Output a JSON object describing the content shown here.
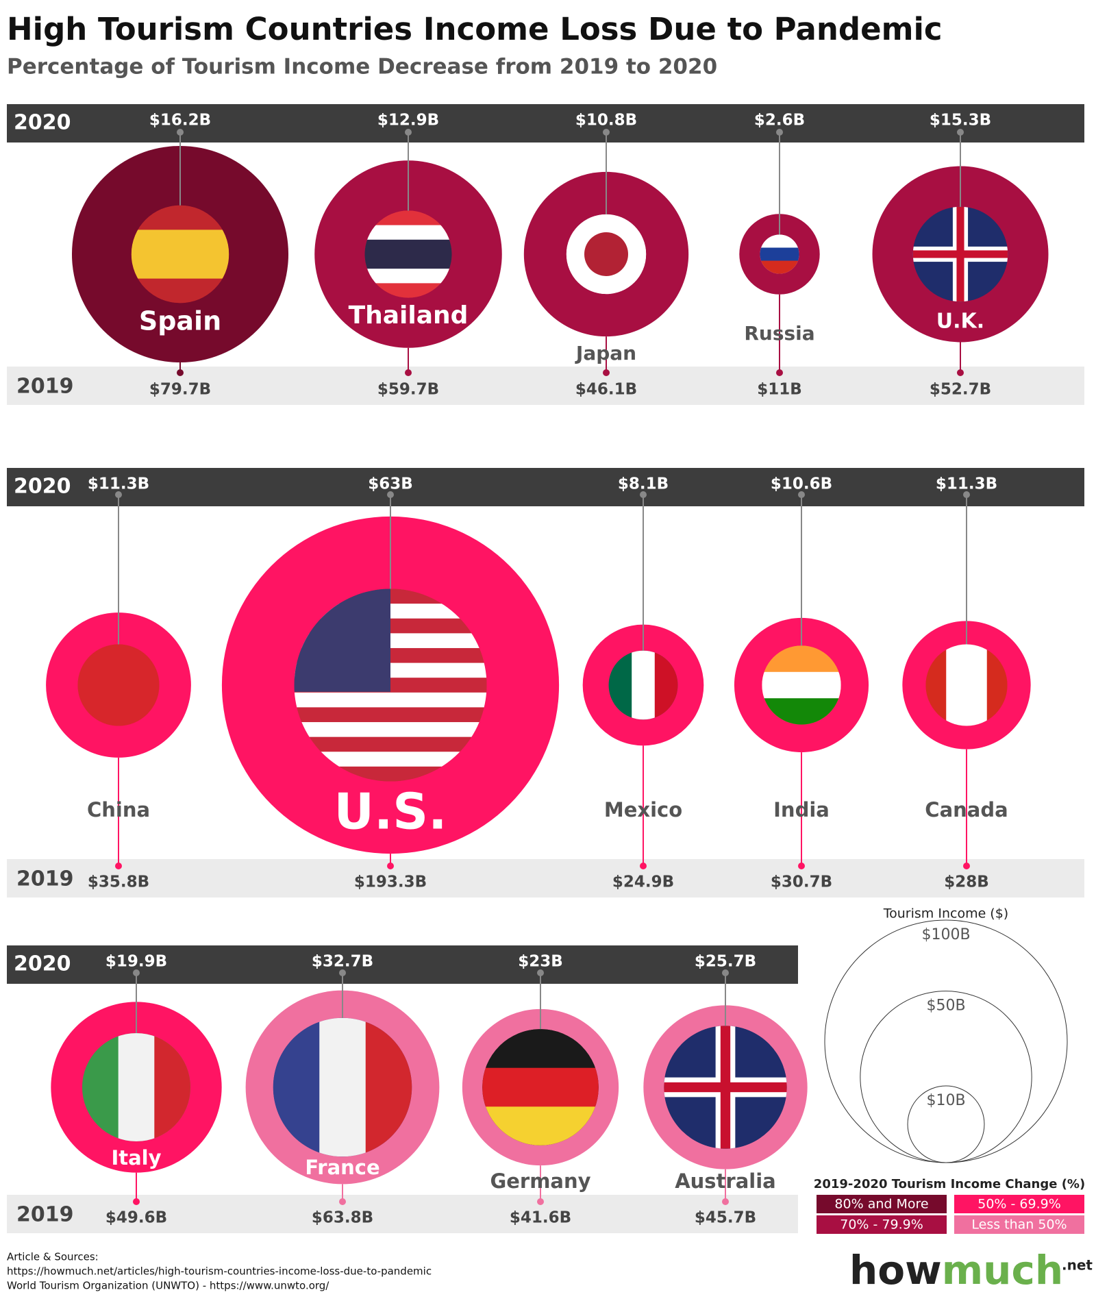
{
  "chart_data": {
    "type": "nested-bubble",
    "title": "High Tourism Countries Income Loss Due to Pandemic",
    "subtitle": "Percentage of Tourism Income Decrease from 2019 to 2020",
    "rows": [
      {
        "categories": [
          "Spain",
          "Thailand",
          "Japan",
          "Russia",
          "U.K."
        ],
        "colors": [
          "#760a2c",
          "#a80f42",
          "#a80f42",
          "#a80f42",
          "#a80f42"
        ],
        "series": [
          {
            "name": "2020",
            "values": [
              16.2,
              12.9,
              10.8,
              2.6,
              15.3
            ],
            "value_labels": [
              "$16.2B",
              "$12.9B",
              "$10.8B",
              "$2.6B",
              "$15.3B"
            ]
          },
          {
            "name": "2019",
            "values": [
              79.7,
              59.7,
              46.1,
              11,
              52.7
            ],
            "value_labels": [
              "$79.7B",
              "$59.7B",
              "$46.1B",
              "$11B",
              "$52.7B"
            ]
          }
        ]
      },
      {
        "categories": [
          "China",
          "U.S.",
          "Mexico",
          "India",
          "Canada"
        ],
        "colors": [
          "#ff1463",
          "#ff1463",
          "#ff1463",
          "#ff1463",
          "#ff1463"
        ],
        "series": [
          {
            "name": "2020",
            "values": [
              11.3,
              63,
              8.1,
              10.6,
              11.3
            ],
            "value_labels": [
              "$11.3B",
              "$63B",
              "$8.1B",
              "$10.6B",
              "$11.3B"
            ]
          },
          {
            "name": "2019",
            "values": [
              35.8,
              193.3,
              24.9,
              30.7,
              28
            ],
            "value_labels": [
              "$35.8B",
              "$193.3B",
              "$24.9B",
              "$30.7B",
              "$28B"
            ]
          }
        ]
      },
      {
        "categories": [
          "Italy",
          "France",
          "Germany",
          "Australia"
        ],
        "colors": [
          "#ff1463",
          "#f0709f",
          "#f0709f",
          "#f0709f"
        ],
        "series": [
          {
            "name": "2020",
            "values": [
              19.9,
              32.7,
              23,
              25.7
            ],
            "value_labels": [
              "$19.9B",
              "$32.7B",
              "$23B",
              "$25.7B"
            ]
          },
          {
            "name": "2019",
            "values": [
              49.6,
              63.8,
              41.6,
              45.7
            ],
            "value_labels": [
              "$49.6B",
              "$63.8B",
              "$41.6B",
              "$45.7B"
            ]
          }
        ]
      }
    ],
    "size_legend": {
      "title": "Tourism Income ($)",
      "values": [
        100,
        50,
        10
      ],
      "value_labels": [
        "$100B",
        "$50B",
        "$10B"
      ]
    },
    "color_legend": {
      "title": "2019-2020 Tourism Income Change (%)",
      "items": [
        {
          "label": "80% and More",
          "color": "#760a2c"
        },
        {
          "label": "50% - 69.9%",
          "color": "#ff1463"
        },
        {
          "label": "70% - 79.9%",
          "color": "#a80f42"
        },
        {
          "label": "Less than 50%",
          "color": "#f0709f"
        }
      ]
    }
  },
  "sources": {
    "heading": "Article & Sources:",
    "lines": [
      "https://howmuch.net/articles/high-tourism-countries-income-loss-due-to-pandemic",
      "World Tourism Organization (UNWTO) - https://www.unwto.org/"
    ]
  },
  "logo": {
    "parts": [
      "how",
      "much"
    ],
    "suffix": ".net"
  }
}
